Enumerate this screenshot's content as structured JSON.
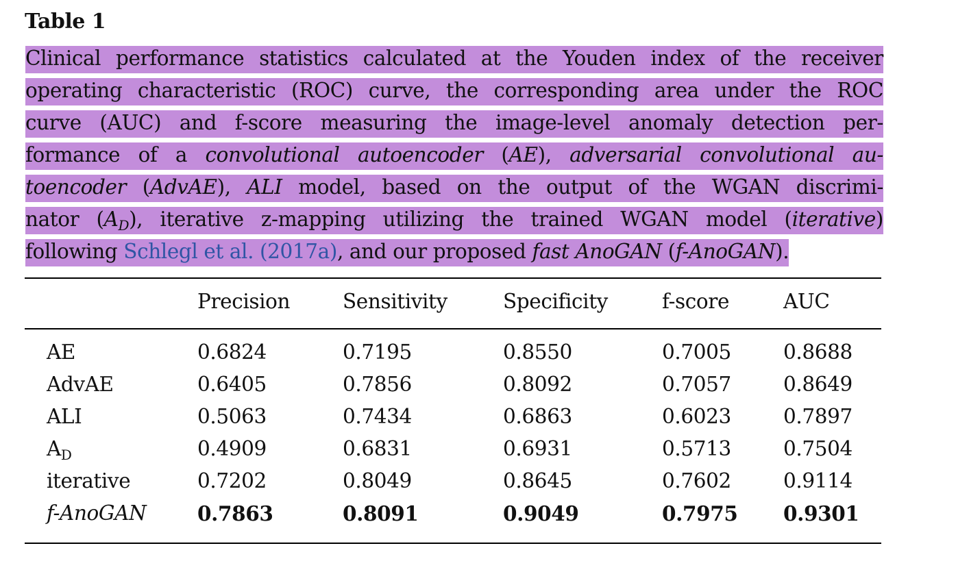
{
  "table_label": "Table 1",
  "caption": {
    "lines": [
      [
        "Clinical performance statistics calculated at the Youden index of the receiver"
      ],
      [
        "operating characteristic (ROC) curve, the corresponding area under the ROC"
      ],
      [
        "curve (AUC) and f-score measuring the image-level anomaly detection per-"
      ],
      [
        "formance of a ",
        "convolutional autoencoder",
        " (",
        "AE",
        "), ",
        "adversarial convolutional au-"
      ],
      [
        "toencoder",
        " (",
        "AdvAE",
        "), ",
        "ALI",
        " model, based on the output of the WGAN discrimi-"
      ],
      [
        "nator (",
        "A",
        "D",
        "), iterative z-mapping utilizing the trained WGAN model (",
        "iterative",
        ")"
      ],
      [
        "following ",
        "Schlegl et al. (2017a)",
        ", and our proposed ",
        "fast AnoGAN",
        " (",
        "f-AnoGAN",
        ")."
      ]
    ]
  },
  "table": {
    "headers": [
      "",
      "Precision",
      "Sensitivity",
      "Specificity",
      "f-score",
      "AUC"
    ],
    "rows": [
      {
        "label": "AE",
        "values": [
          "0.6824",
          "0.7195",
          "0.8550",
          "0.7005",
          "0.8688"
        ]
      },
      {
        "label": "AdvAE",
        "values": [
          "0.6405",
          "0.7856",
          "0.8092",
          "0.7057",
          "0.8649"
        ]
      },
      {
        "label": "ALI",
        "values": [
          "0.5063",
          "0.7434",
          "0.6863",
          "0.6023",
          "0.7897"
        ]
      },
      {
        "label": "A",
        "label_sub": "D",
        "values": [
          "0.4909",
          "0.6831",
          "0.6931",
          "0.5713",
          "0.7504"
        ]
      },
      {
        "label": "iterative",
        "values": [
          "0.7202",
          "0.8049",
          "0.8645",
          "0.7602",
          "0.9114"
        ]
      },
      {
        "label": "f-AnoGAN",
        "values": [
          "0.7863",
          "0.8091",
          "0.9049",
          "0.7975",
          "0.9301"
        ]
      }
    ]
  },
  "colors": {
    "highlight": "#c38ddb",
    "link": "#2f55a4",
    "text": "#111111"
  }
}
